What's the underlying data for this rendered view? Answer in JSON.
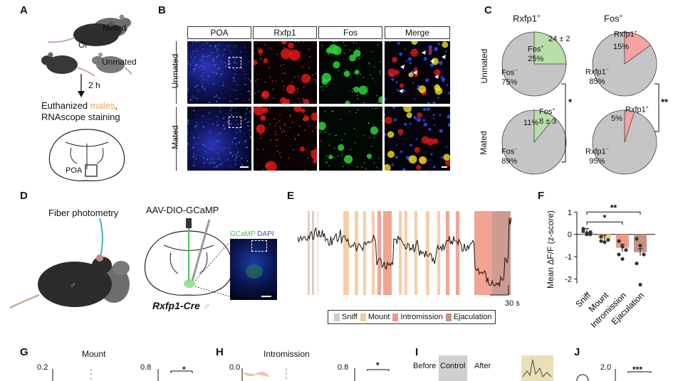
{
  "panel_labels": {
    "a": "A",
    "b": "B",
    "c": "C",
    "d": "D",
    "e": "E",
    "f": "F",
    "g": "G",
    "h": "H",
    "i": "I",
    "j": "J"
  },
  "panel_a": {
    "mated": "Mated",
    "or": "Or",
    "unmated": "Unmated",
    "duration": "2 h",
    "step_prefix": "Euthanized ",
    "step_highlight": "males",
    "step_suffix": ",",
    "step_line2": "RNAscope staining",
    "region": "POA",
    "male_symbol": "♂",
    "female_symbol": "♀"
  },
  "panel_b": {
    "headers": [
      "POA",
      "Rxfp1",
      "Fos",
      "Merge"
    ],
    "rows": [
      "Unmated",
      "Mated"
    ]
  },
  "panel_c": {
    "col_titles": [
      "Rxfp1",
      "Fos"
    ],
    "superscript": "+",
    "row_labels": [
      "Unmated",
      "Mated"
    ],
    "pies": [
      {
        "pos_label": "Fos",
        "pos_sup": "+",
        "pos_pct": "25%",
        "neg_label": "Fos",
        "neg_sup": "−",
        "neg_pct": "75%",
        "pos_frac": 0.25,
        "count": "24 ± 2",
        "color": "#b8dea9"
      },
      {
        "pos_label": "Rxfp1",
        "pos_sup": "+",
        "pos_pct": "15%",
        "neg_label": "Rxfp1",
        "neg_sup": "−",
        "neg_pct": "85%",
        "pos_frac": 0.15,
        "color": "#f6a3a3"
      },
      {
        "pos_label": "Fos",
        "pos_sup": "+",
        "pos_pct": "11%",
        "neg_label": "Fos",
        "neg_sup": "−",
        "neg_pct": "89%",
        "pos_frac": 0.11,
        "count": "8 ± 3",
        "color": "#b8dea9"
      },
      {
        "pos_label": "Rxfp1",
        "pos_sup": "+",
        "pos_pct": "5%",
        "neg_label": "Rxfp1",
        "neg_sup": "−",
        "neg_pct": "95%",
        "pos_frac": 0.05,
        "color": "#f6a3a3"
      }
    ],
    "sig_left": "*",
    "sig_right": "**"
  },
  "panel_d": {
    "fiber": "Fiber photometry",
    "virus": "AAV-DIO-GCaMP",
    "gcamp": "GCaMP",
    "dapi": "DAPI",
    "genotype": "Rxfp1-Cre",
    "male_symbol": "♂"
  },
  "panel_e": {
    "legend": [
      "Sniff",
      "Mount",
      "Intromission",
      "Ejaculation"
    ],
    "scale": "30 s",
    "colors": {
      "sniff": "#d9c9bd",
      "mount": "#f7c99a",
      "intromission": "#ef9a85",
      "ejaculation": "#c69283"
    }
  },
  "chart_data": {
    "type": "bar",
    "categories": [
      "Sniff",
      "Mount",
      "Intromission",
      "Ejaculation"
    ],
    "values": [
      0.1,
      -0.2,
      -0.6,
      -0.8
    ],
    "points": [
      [
        0.25,
        0.0,
        0.1,
        0.15,
        0.05,
        0.0
      ],
      [
        -0.1,
        -0.35,
        -0.25,
        -0.3
      ],
      [
        -0.3,
        -0.55,
        -0.7,
        -0.9,
        -1.1
      ],
      [
        -0.2,
        -0.5,
        -0.9,
        -1.3,
        -2.25
      ]
    ],
    "ylabel": "Mean ΔF/F (z-score)",
    "ylim": [
      -2.3,
      1.2
    ],
    "yticks": [
      1,
      0,
      -1,
      -2
    ],
    "colors": [
      "#d9c9bd",
      "#f7c99a",
      "#ef9a85",
      "#c69283"
    ],
    "significance": [
      {
        "from": "Sniff",
        "to": "Intromission",
        "label": "*"
      },
      {
        "from": "Sniff",
        "to": "Ejaculation",
        "label": "**"
      }
    ]
  },
  "panel_g": {
    "title": "Mount",
    "tick_a": "0.2",
    "tick_b": "0.8",
    "sig": "*"
  },
  "panel_h": {
    "title": "Intromission",
    "tick_a": "0.0",
    "tick_b": "0.8",
    "sig": "*"
  },
  "panel_i": {
    "before": "Before",
    "control": "Control",
    "after": "After"
  },
  "panel_j": {
    "tick": "2.0",
    "sig": "***"
  }
}
